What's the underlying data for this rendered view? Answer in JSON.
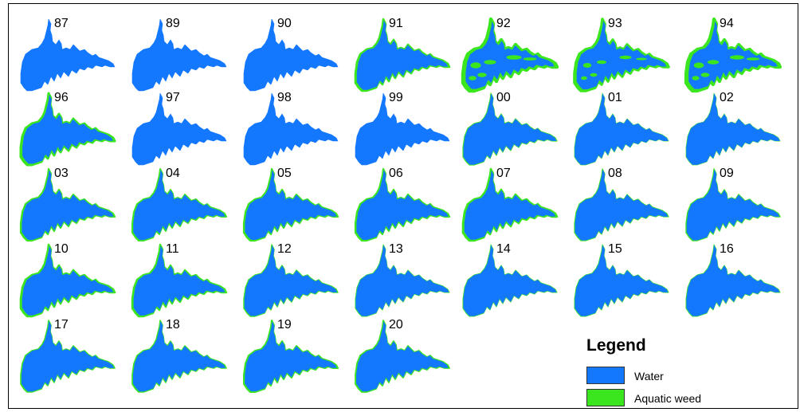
{
  "colors": {
    "water": "#1478ff",
    "weed": "#3ce61e"
  },
  "maps": [
    {
      "label": "87",
      "weed": 0
    },
    {
      "label": "89",
      "weed": 0
    },
    {
      "label": "90",
      "weed": 0
    },
    {
      "label": "91",
      "weed": 0.5
    },
    {
      "label": "92",
      "weed": 0.95
    },
    {
      "label": "93",
      "weed": 0.75
    },
    {
      "label": "94",
      "weed": 0.9
    },
    {
      "label": "96",
      "weed": 0.6
    },
    {
      "label": "97",
      "weed": 0
    },
    {
      "label": "98",
      "weed": 0
    },
    {
      "label": "99",
      "weed": 0
    },
    {
      "label": "00",
      "weed": 0.15
    },
    {
      "label": "01",
      "weed": 0.05
    },
    {
      "label": "02",
      "weed": 0.05
    },
    {
      "label": "03",
      "weed": 0.4
    },
    {
      "label": "04",
      "weed": 0.35
    },
    {
      "label": "05",
      "weed": 0.4
    },
    {
      "label": "06",
      "weed": 0.4
    },
    {
      "label": "07",
      "weed": 0.5
    },
    {
      "label": "08",
      "weed": 0.15
    },
    {
      "label": "09",
      "weed": 0.2
    },
    {
      "label": "10",
      "weed": 0.5
    },
    {
      "label": "11",
      "weed": 0.45
    },
    {
      "label": "12",
      "weed": 0.2
    },
    {
      "label": "13",
      "weed": 0.1
    },
    {
      "label": "14",
      "weed": 0.1
    },
    {
      "label": "15",
      "weed": 0.1
    },
    {
      "label": "16",
      "weed": 0.1
    },
    {
      "label": "17",
      "weed": 0.25
    },
    {
      "label": "18",
      "weed": 0.25
    },
    {
      "label": "19",
      "weed": 0.35
    },
    {
      "label": "20",
      "weed": 0.3
    }
  ],
  "legend": {
    "title": "Legend",
    "items": [
      {
        "label": "Water",
        "color": "#1478ff"
      },
      {
        "label": "Aquatic weed",
        "color": "#3ce61e"
      }
    ]
  }
}
